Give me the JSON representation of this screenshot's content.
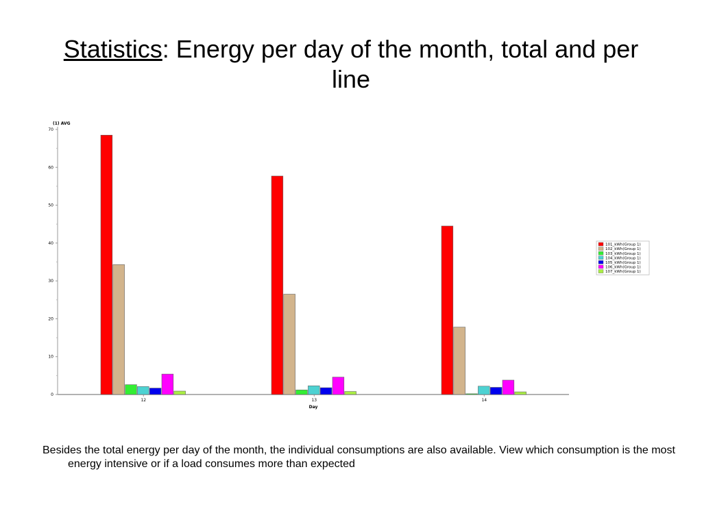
{
  "slide": {
    "title_keyword": "Statistics",
    "title_rest": ": Energy per day of the month, total and per line",
    "caption": "Besides the total energy per day of the month, the individual consumptions are also available. View which consumption is the most energy intensive or if a load consumes more than expected"
  },
  "chart_data": {
    "type": "bar",
    "title": "",
    "ylabel": "(1) AVG",
    "xlabel": "Day",
    "ylim": [
      0,
      70
    ],
    "yticks": [
      0,
      10,
      20,
      30,
      40,
      50,
      60,
      70
    ],
    "grid": false,
    "legend_position": "right",
    "categories": [
      "12",
      "13",
      "14"
    ],
    "series": [
      {
        "name": "101_kWh(Group 1)",
        "color": "#ff0000",
        "values": [
          68.5,
          57.7,
          44.5
        ]
      },
      {
        "name": "102_kWh(Group 1)",
        "color": "#d2b48c",
        "values": [
          34.3,
          26.5,
          17.8
        ]
      },
      {
        "name": "103_kWh(Group 1)",
        "color": "#33ee33",
        "values": [
          2.6,
          1.2,
          0.2
        ]
      },
      {
        "name": "104_kWh(Group 1)",
        "color": "#4dd2d2",
        "values": [
          2.1,
          2.3,
          2.2
        ]
      },
      {
        "name": "105_kWh(Group 1)",
        "color": "#0000ee",
        "values": [
          1.7,
          1.8,
          1.9
        ]
      },
      {
        "name": "106_kWh(Group 1)",
        "color": "#ff00ff",
        "values": [
          5.4,
          4.6,
          3.8
        ]
      },
      {
        "name": "107_kWh(Group 1)",
        "color": "#aaee44",
        "values": [
          0.9,
          0.8,
          0.7
        ]
      }
    ]
  }
}
